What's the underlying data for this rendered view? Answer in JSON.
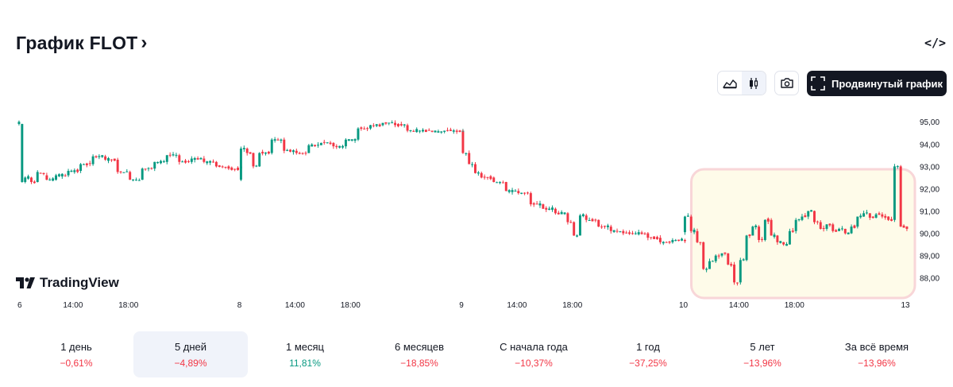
{
  "header": {
    "title": "График FLOT",
    "chevron": "›",
    "embed_icon": "</>"
  },
  "toolbar": {
    "chart_types": [
      {
        "name": "area-chart-icon",
        "active": false
      },
      {
        "name": "candles-chart-icon",
        "active": true
      }
    ],
    "screenshot_icon": "camera-icon",
    "advanced_icon": "fullscreen-frame-icon",
    "advanced_label": "Продвинутый график"
  },
  "brand": {
    "name": "TradingView"
  },
  "colors": {
    "up": "#089981",
    "down": "#f23645",
    "highlight_fill": "#fefbe9",
    "highlight_border": "#f8d6d8"
  },
  "chart_data": {
    "type": "candlestick",
    "title": "",
    "xlabel": "",
    "ylabel": "",
    "ylim": [
      87.1,
      95.65
    ],
    "y_ticks": [
      "95,00",
      "94,00",
      "93,00",
      "92,00",
      "91,00",
      "90,00",
      "89,00",
      "88,00"
    ],
    "x_ticks": [
      "6",
      "14:00",
      "18:00",
      "8",
      "14:00",
      "18:00",
      "9",
      "14:00",
      "18:00",
      "10",
      "14:00",
      "18:00",
      "13"
    ],
    "highlight": "last trading day",
    "days": [
      {
        "label": "6",
        "anchors": [
          [
            0,
            94.9,
            95.0
          ],
          [
            1,
            92.3,
            94.9
          ],
          [
            2,
            92.3,
            92.5
          ],
          [
            4,
            92.5,
            92.3
          ],
          [
            6,
            92.3,
            92.75
          ],
          [
            9,
            92.6,
            92.4
          ],
          [
            12,
            92.4,
            92.6
          ],
          [
            16,
            92.6,
            92.8
          ],
          [
            20,
            92.8,
            93.1
          ],
          [
            24,
            93.1,
            93.45
          ],
          [
            28,
            93.45,
            93.3
          ],
          [
            32,
            93.3,
            92.75
          ],
          [
            36,
            92.75,
            92.4
          ],
          [
            40,
            92.4,
            92.9
          ],
          [
            44,
            92.9,
            93.2
          ],
          [
            48,
            93.2,
            93.5
          ],
          [
            52,
            93.5,
            93.2
          ],
          [
            56,
            93.2,
            93.35
          ],
          [
            60,
            93.35,
            93.2
          ],
          [
            64,
            93.2,
            93.0
          ],
          [
            68,
            93.0,
            92.9
          ],
          [
            72,
            92.9,
            93.0
          ]
        ]
      },
      {
        "label": "8",
        "anchors": [
          [
            0,
            92.4,
            93.8
          ],
          [
            2,
            93.8,
            93.6
          ],
          [
            4,
            93.6,
            93.0
          ],
          [
            6,
            93.0,
            93.6
          ],
          [
            10,
            93.6,
            94.2
          ],
          [
            14,
            94.2,
            93.7
          ],
          [
            18,
            93.7,
            93.6
          ],
          [
            22,
            93.6,
            93.95
          ],
          [
            26,
            93.95,
            94.05
          ],
          [
            30,
            94.05,
            93.9
          ],
          [
            34,
            93.9,
            94.2
          ],
          [
            38,
            94.2,
            94.7
          ],
          [
            42,
            94.7,
            94.85
          ],
          [
            46,
            94.85,
            94.95
          ],
          [
            50,
            94.95,
            94.85
          ],
          [
            54,
            94.85,
            94.6
          ],
          [
            58,
            94.6,
            94.6
          ],
          [
            62,
            94.6,
            94.55
          ],
          [
            66,
            94.55,
            94.6
          ],
          [
            70,
            94.6,
            94.55
          ],
          [
            72,
            94.55,
            94.6
          ]
        ]
      },
      {
        "label": "9",
        "anchors": [
          [
            0,
            94.55,
            93.6
          ],
          [
            2,
            93.6,
            93.1
          ],
          [
            4,
            93.1,
            92.7
          ],
          [
            6,
            92.7,
            92.5
          ],
          [
            10,
            92.5,
            92.3
          ],
          [
            14,
            92.3,
            91.9
          ],
          [
            18,
            91.9,
            91.8
          ],
          [
            22,
            91.8,
            91.3
          ],
          [
            26,
            91.3,
            91.1
          ],
          [
            30,
            91.1,
            90.9
          ],
          [
            34,
            90.9,
            90.5
          ],
          [
            36,
            90.5,
            89.9
          ],
          [
            38,
            89.9,
            90.8
          ],
          [
            40,
            90.8,
            90.6
          ],
          [
            44,
            90.6,
            90.3
          ],
          [
            48,
            90.3,
            90.1
          ],
          [
            52,
            90.1,
            90.0
          ],
          [
            56,
            90.0,
            90.0
          ],
          [
            60,
            90.0,
            89.8
          ],
          [
            64,
            89.8,
            89.6
          ],
          [
            68,
            89.6,
            89.7
          ],
          [
            72,
            89.7,
            89.65
          ]
        ]
      },
      {
        "label": "10",
        "anchors": [
          [
            0,
            90.05,
            90.75
          ],
          [
            2,
            90.75,
            90.1
          ],
          [
            4,
            90.1,
            89.6
          ],
          [
            6,
            89.6,
            88.4
          ],
          [
            8,
            88.4,
            88.75
          ],
          [
            10,
            88.75,
            89.0
          ],
          [
            12,
            89.0,
            89.1
          ],
          [
            14,
            89.1,
            88.6
          ],
          [
            16,
            88.6,
            87.8
          ],
          [
            18,
            87.8,
            88.8
          ],
          [
            20,
            88.8,
            89.9
          ],
          [
            22,
            89.9,
            90.3
          ],
          [
            24,
            90.3,
            89.7
          ],
          [
            26,
            89.7,
            90.6
          ],
          [
            28,
            90.6,
            89.9
          ],
          [
            30,
            89.9,
            89.6
          ],
          [
            32,
            89.6,
            89.5
          ],
          [
            34,
            89.5,
            90.1
          ],
          [
            36,
            90.1,
            90.6
          ],
          [
            38,
            90.6,
            90.75
          ],
          [
            40,
            90.75,
            91.0
          ],
          [
            42,
            91.0,
            90.5
          ],
          [
            44,
            90.5,
            90.2
          ],
          [
            46,
            90.2,
            90.4
          ],
          [
            48,
            90.4,
            90.1
          ],
          [
            50,
            90.1,
            90.2
          ],
          [
            52,
            90.2,
            90.0
          ],
          [
            54,
            90.0,
            90.3
          ],
          [
            56,
            90.3,
            90.75
          ],
          [
            58,
            90.75,
            90.9
          ],
          [
            60,
            90.9,
            90.7
          ],
          [
            62,
            90.7,
            90.85
          ],
          [
            64,
            90.85,
            90.75
          ],
          [
            66,
            90.75,
            90.6
          ],
          [
            68,
            90.6,
            93.0
          ],
          [
            70,
            93.0,
            90.3
          ],
          [
            72,
            90.3,
            90.2
          ]
        ]
      }
    ]
  },
  "periods": [
    {
      "label": "1 день",
      "change": "−0,61%",
      "direction": "down",
      "active": false
    },
    {
      "label": "5 дней",
      "change": "−4,89%",
      "direction": "down",
      "active": true
    },
    {
      "label": "1 месяц",
      "change": "11,81%",
      "direction": "up",
      "active": false
    },
    {
      "label": "6 месяцев",
      "change": "−18,85%",
      "direction": "down",
      "active": false
    },
    {
      "label": "С начала года",
      "change": "−10,37%",
      "direction": "down",
      "active": false
    },
    {
      "label": "1 год",
      "change": "−37,25%",
      "direction": "down",
      "active": false
    },
    {
      "label": "5 лет",
      "change": "−13,96%",
      "direction": "down",
      "active": false
    },
    {
      "label": "За всё время",
      "change": "−13,96%",
      "direction": "down",
      "active": false
    }
  ]
}
